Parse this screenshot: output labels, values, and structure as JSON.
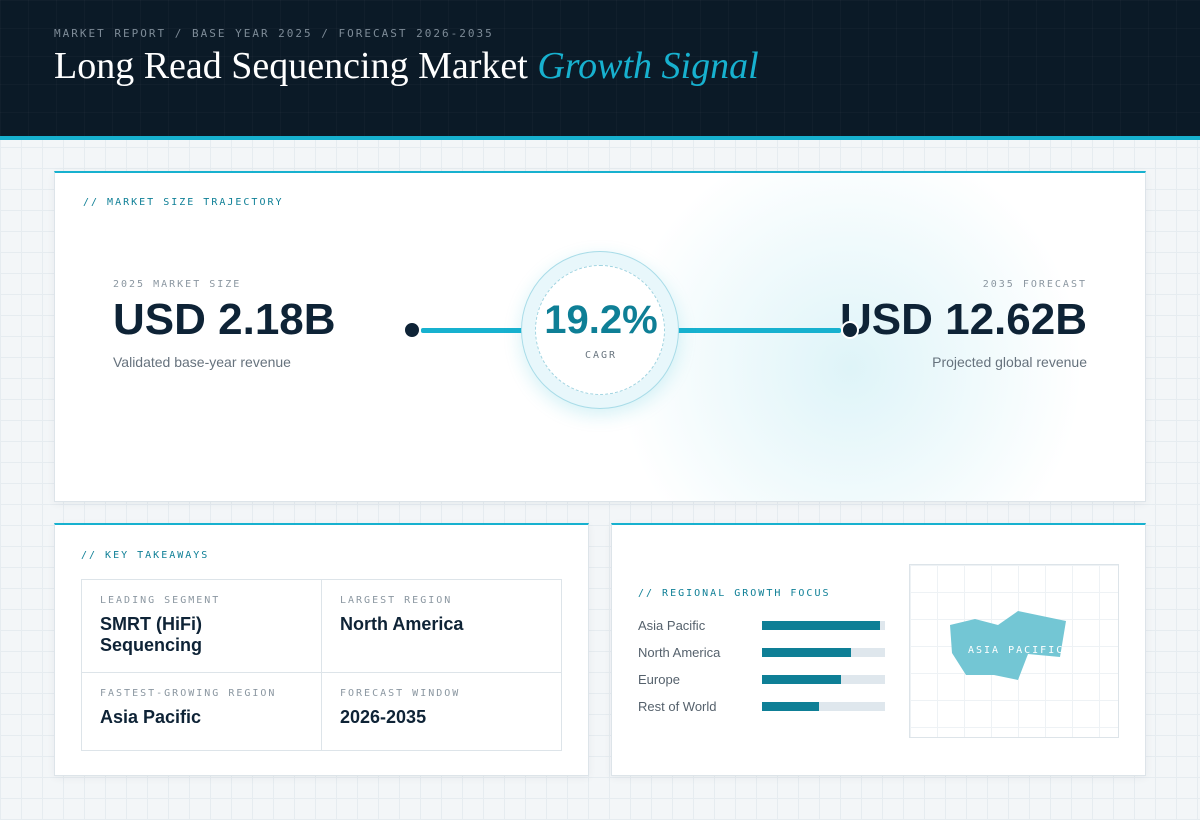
{
  "header": {
    "breadcrumb": "MARKET REPORT / BASE YEAR 2025 / FORECAST 2026-2035",
    "title_main": "Long Read Sequencing Market",
    "title_accent": "Growth Signal"
  },
  "trajectory": {
    "section_label": "// MARKET SIZE TRAJECTORY",
    "start": {
      "caption": "2025 MARKET SIZE",
      "value": "USD 2.18B",
      "subtitle": "Validated base-year revenue"
    },
    "end": {
      "caption": "2035 FORECAST",
      "value": "USD 12.62B",
      "subtitle": "Projected global revenue"
    },
    "cagr": {
      "value": "19.2%",
      "label": "CAGR"
    }
  },
  "takeaways": {
    "section_label": "// KEY TAKEAWAYS",
    "items": [
      {
        "caption": "LEADING SEGMENT",
        "value": "SMRT (HiFi) Sequencing"
      },
      {
        "caption": "LARGEST REGION",
        "value": "North America"
      },
      {
        "caption": "FASTEST-GROWING REGION",
        "value": "Asia Pacific"
      },
      {
        "caption": "FORECAST WINDOW",
        "value": "2026-2035"
      }
    ]
  },
  "regional": {
    "section_label": "// REGIONAL GROWTH FOCUS",
    "regions": [
      {
        "name": "Asia Pacific",
        "level": 0.96
      },
      {
        "name": "North America",
        "level": 0.72
      },
      {
        "name": "Europe",
        "level": 0.64
      },
      {
        "name": "Rest of World",
        "level": 0.46
      }
    ],
    "map_label": "ASIA PACIFIC"
  },
  "colors": {
    "accent": "#17b1cf",
    "accent_dark": "#0e7f96",
    "navy": "#0b1a27",
    "ink": "#0e2336"
  }
}
